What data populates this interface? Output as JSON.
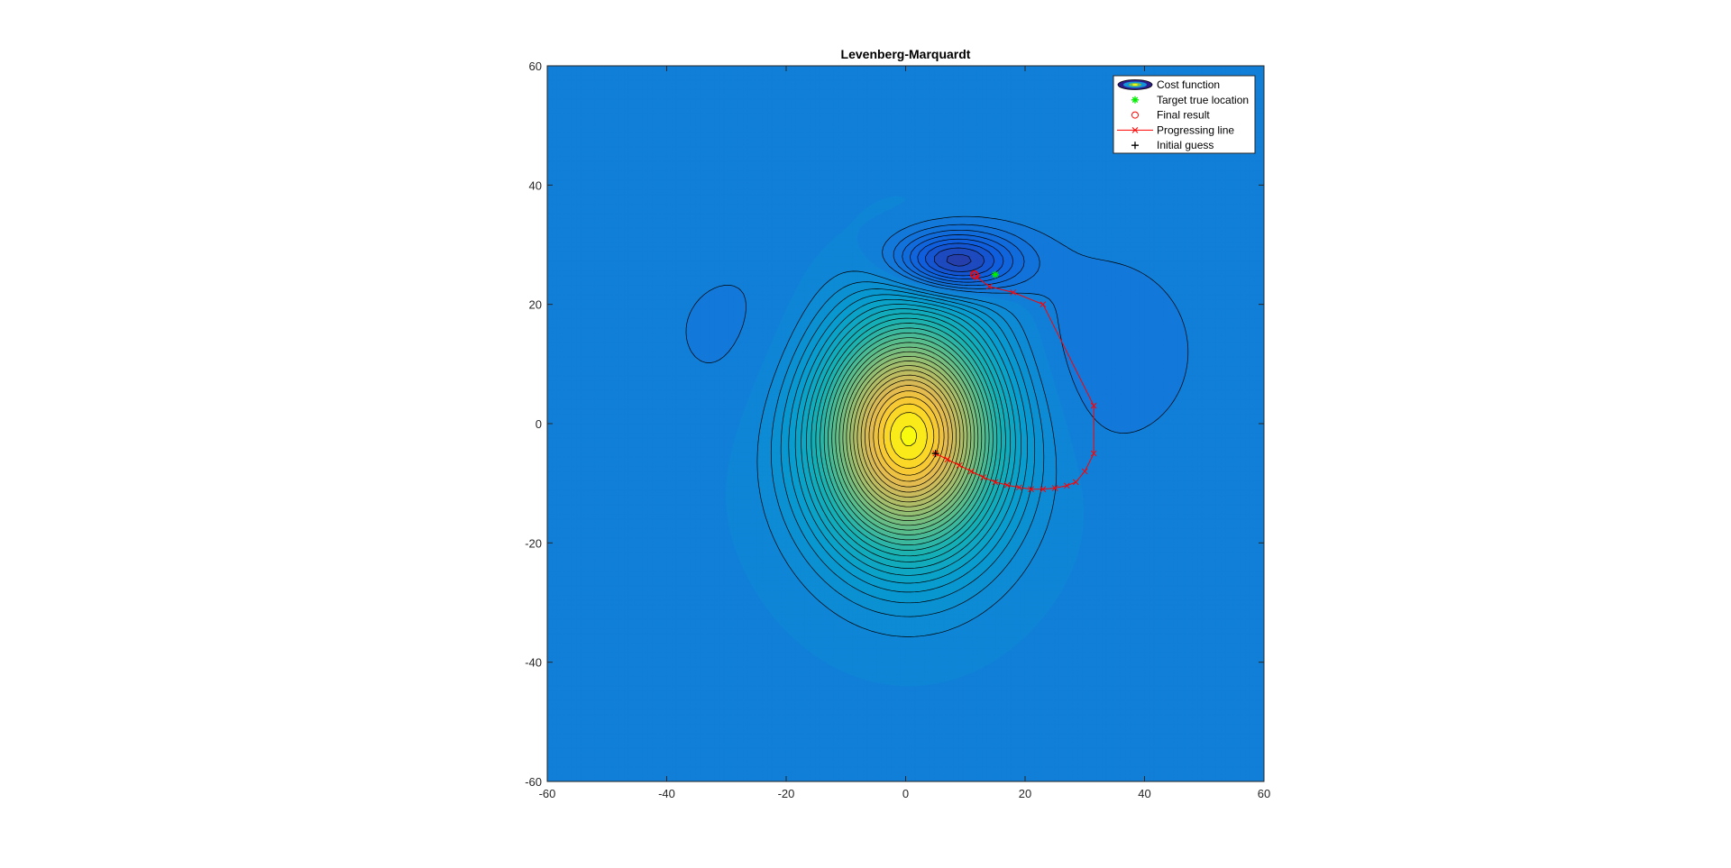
{
  "chart_data": {
    "type": "contour",
    "title": "Levenberg-Marquardt",
    "xlabel": "",
    "ylabel": "",
    "xlim": [
      -60,
      60
    ],
    "ylim": [
      -60,
      60
    ],
    "x_ticks": [
      -60,
      -40,
      -20,
      0,
      20,
      40,
      60
    ],
    "y_ticks": [
      -60,
      -40,
      -20,
      0,
      20,
      40,
      60
    ],
    "grid": false,
    "legend_position": "top-right",
    "colormap": "parula",
    "legend": [
      {
        "key": "cost",
        "label": "Cost function"
      },
      {
        "key": "target",
        "label": "Target true location"
      },
      {
        "key": "final",
        "label": "Final result"
      },
      {
        "key": "progress",
        "label": "Progressing line"
      },
      {
        "key": "initial",
        "label": "Initial guess"
      }
    ],
    "target_true_location": {
      "x": 15,
      "y": 25
    },
    "final_result": {
      "x": 11.5,
      "y": 25
    },
    "initial_guess": {
      "x": 5,
      "y": -5
    },
    "progressing_line": [
      {
        "x": 5,
        "y": -5
      },
      {
        "x": 7,
        "y": -6
      },
      {
        "x": 9,
        "y": -7
      },
      {
        "x": 11,
        "y": -8
      },
      {
        "x": 13,
        "y": -9
      },
      {
        "x": 15,
        "y": -9.8
      },
      {
        "x": 17,
        "y": -10.3
      },
      {
        "x": 19,
        "y": -10.7
      },
      {
        "x": 21,
        "y": -11
      },
      {
        "x": 23,
        "y": -11
      },
      {
        "x": 25,
        "y": -10.8
      },
      {
        "x": 27,
        "y": -10.4
      },
      {
        "x": 28.5,
        "y": -9.8
      },
      {
        "x": 30,
        "y": -8
      },
      {
        "x": 31.5,
        "y": -5
      },
      {
        "x": 31.5,
        "y": 3
      },
      {
        "x": 23,
        "y": 20
      },
      {
        "x": 18,
        "y": 22
      },
      {
        "x": 14,
        "y": 23
      },
      {
        "x": 12,
        "y": 24.5
      },
      {
        "x": 11.5,
        "y": 25
      }
    ],
    "colors": {
      "line": "#ff0000",
      "target": "#00ee00",
      "final": "#ff0000",
      "initial": "#000000",
      "background": "#2b84ea"
    }
  }
}
